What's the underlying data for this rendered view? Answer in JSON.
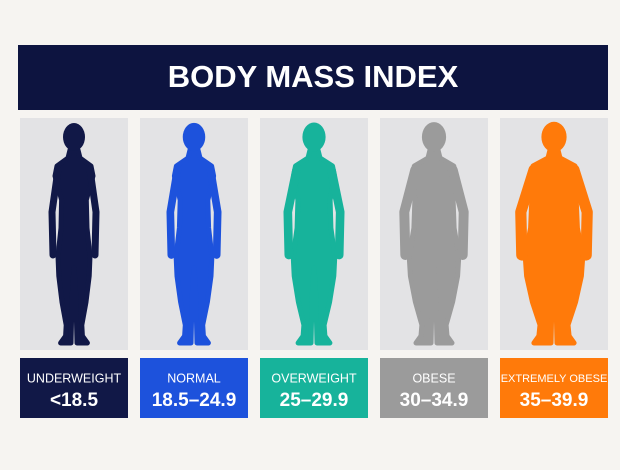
{
  "title": "BODY MASS INDEX",
  "categories": [
    {
      "label": "UNDERWEIGHT",
      "range": "<18.5",
      "color": "#111847"
    },
    {
      "label": "NORMAL",
      "range": "18.5–24.9",
      "color": "#1d52dc"
    },
    {
      "label": "OVERWEIGHT",
      "range": "25–29.9",
      "color": "#17b39b"
    },
    {
      "label": "OBESE",
      "range": "30–34.9",
      "color": "#9b9b9b"
    },
    {
      "label": "EXTREMELY OBESE",
      "range": "35–39.9",
      "color": "#ff7a0a"
    }
  ]
}
